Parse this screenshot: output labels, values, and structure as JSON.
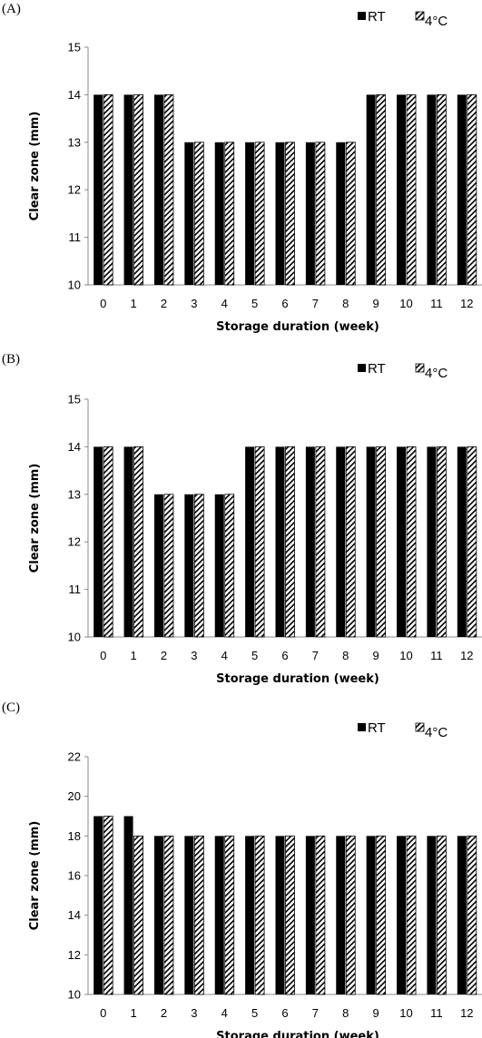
{
  "chart_data": [
    {
      "type": "bar",
      "panel_label": "(A)",
      "categories": [
        "0",
        "1",
        "2",
        "3",
        "4",
        "5",
        "6",
        "7",
        "8",
        "9",
        "10",
        "11",
        "12"
      ],
      "series": [
        {
          "name": "RT",
          "pattern": "solid",
          "color": "#000000",
          "values": [
            14,
            14,
            14,
            13,
            13,
            13,
            13,
            13,
            13,
            14,
            14,
            14,
            14
          ]
        },
        {
          "name": "4°C",
          "pattern": "diagonal-hatch",
          "color": "#000000",
          "values": [
            14,
            14,
            14,
            13,
            13,
            13,
            13,
            13,
            13,
            14,
            14,
            14,
            14
          ]
        }
      ],
      "xlabel": "Storage duration (week)",
      "ylabel": "Clear zone (mm)",
      "ylim": [
        10,
        15
      ],
      "yticks": [
        10,
        11,
        12,
        13,
        14,
        15
      ],
      "grid": false,
      "legend": "top-right"
    },
    {
      "type": "bar",
      "panel_label": "(B)",
      "categories": [
        "0",
        "1",
        "2",
        "3",
        "4",
        "5",
        "6",
        "7",
        "8",
        "9",
        "10",
        "11",
        "12"
      ],
      "series": [
        {
          "name": "RT",
          "pattern": "solid",
          "color": "#000000",
          "values": [
            14,
            14,
            13,
            13,
            13,
            14,
            14,
            14,
            14,
            14,
            14,
            14,
            14
          ]
        },
        {
          "name": "4°C",
          "pattern": "diagonal-hatch",
          "color": "#000000",
          "values": [
            14,
            14,
            13,
            13,
            13,
            14,
            14,
            14,
            14,
            14,
            14,
            14,
            14
          ]
        }
      ],
      "xlabel": "Storage duration (week)",
      "ylabel": "Clear zone (mm)",
      "ylim": [
        10,
        15
      ],
      "yticks": [
        10,
        11,
        12,
        13,
        14,
        15
      ],
      "grid": false,
      "legend": "top-right"
    },
    {
      "type": "bar",
      "panel_label": "(C)",
      "categories": [
        "0",
        "1",
        "2",
        "3",
        "4",
        "5",
        "6",
        "7",
        "8",
        "9",
        "10",
        "11",
        "12"
      ],
      "series": [
        {
          "name": "RT",
          "pattern": "solid",
          "color": "#000000",
          "values": [
            19,
            19,
            18,
            18,
            18,
            18,
            18,
            18,
            18,
            18,
            18,
            18,
            18
          ]
        },
        {
          "name": "4°C",
          "pattern": "diagonal-hatch",
          "color": "#000000",
          "values": [
            19,
            18,
            18,
            18,
            18,
            18,
            18,
            18,
            18,
            18,
            18,
            18,
            18
          ]
        }
      ],
      "xlabel": "Storage duration (week)",
      "ylabel": "Clear zone (mm)",
      "ylim": [
        10,
        22
      ],
      "yticks": [
        10,
        12,
        14,
        16,
        18,
        20,
        22
      ],
      "grid": false,
      "legend": "top-right"
    }
  ]
}
